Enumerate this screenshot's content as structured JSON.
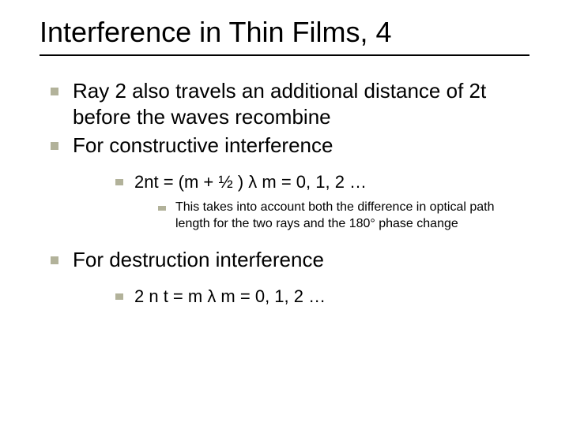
{
  "colors": {
    "background": "#ffffff",
    "text": "#000000",
    "bullet": "#b2b29a",
    "underline": "#000000"
  },
  "typography": {
    "title_fontsize": 36,
    "lvl1_fontsize": 26,
    "lvl2_fontsize": 22,
    "lvl3_fontsize": 16,
    "font_family": "Verdana"
  },
  "title": "Interference in Thin Films, 4",
  "bullets": {
    "l1a": "Ray 2 also travels an additional distance of 2t before the waves recombine",
    "l1b": "For constructive interference",
    "l2a": "2nt = (m + ½ ) λ   m = 0, 1, 2 …",
    "l3a": "This takes into account both the difference in optical path length for the two rays and the 180° phase change",
    "l1c": "For destruction interference",
    "l2b": "2 n t = m λ   m = 0, 1, 2 …"
  }
}
